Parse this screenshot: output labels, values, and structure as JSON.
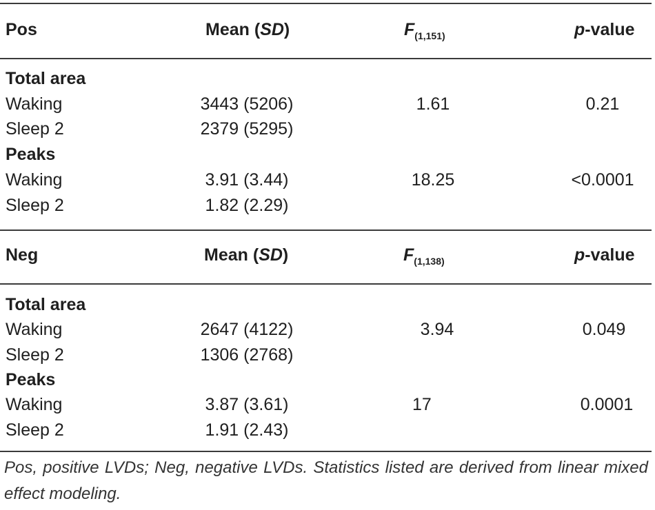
{
  "sections": [
    {
      "header": {
        "group": "Pos",
        "mean_label": "Mean (",
        "sd_label": "SD",
        "mean_close": ")",
        "f_letter": "F",
        "f_sub": "(1,151)",
        "p_letter": "p",
        "p_rest": "-value"
      },
      "subgroups": [
        {
          "label": "Total area",
          "rows": [
            {
              "condition": "Waking",
              "mean": "3443 (5206)",
              "f": "1.61",
              "p": "0.21"
            },
            {
              "condition": "Sleep 2",
              "mean": "2379 (5295)",
              "f": "",
              "p": ""
            }
          ]
        },
        {
          "label": "Peaks",
          "rows": [
            {
              "condition": "Waking",
              "mean": "3.91 (3.44)",
              "f": "18.25",
              "p": "<0.0001"
            },
            {
              "condition": "Sleep 2",
              "mean": "1.82 (2.29)",
              "f": "",
              "p": ""
            }
          ]
        }
      ]
    },
    {
      "header": {
        "group": "Neg",
        "mean_label": "Mean (",
        "sd_label": "SD",
        "mean_close": ")",
        "f_letter": "F",
        "f_sub": "(1,138)",
        "p_letter": "p",
        "p_rest": "-value"
      },
      "subgroups": [
        {
          "label": "Total area",
          "rows": [
            {
              "condition": "Waking",
              "mean": "2647 (4122)",
              "f": "3.94",
              "p": "0.049"
            },
            {
              "condition": "Sleep 2",
              "mean": "1306 (2768)",
              "f": "",
              "p": ""
            }
          ]
        },
        {
          "label": "Peaks",
          "rows": [
            {
              "condition": "Waking",
              "mean": "3.87 (3.61)",
              "f": "17",
              "p": "0.0001"
            },
            {
              "condition": "Sleep 2",
              "mean": "1.91 (2.43)",
              "f": "",
              "p": ""
            }
          ]
        }
      ]
    }
  ],
  "footnote": "Pos, positive LVDs; Neg, negative LVDs. Statistics listed are derived from linear mixed effect modeling."
}
